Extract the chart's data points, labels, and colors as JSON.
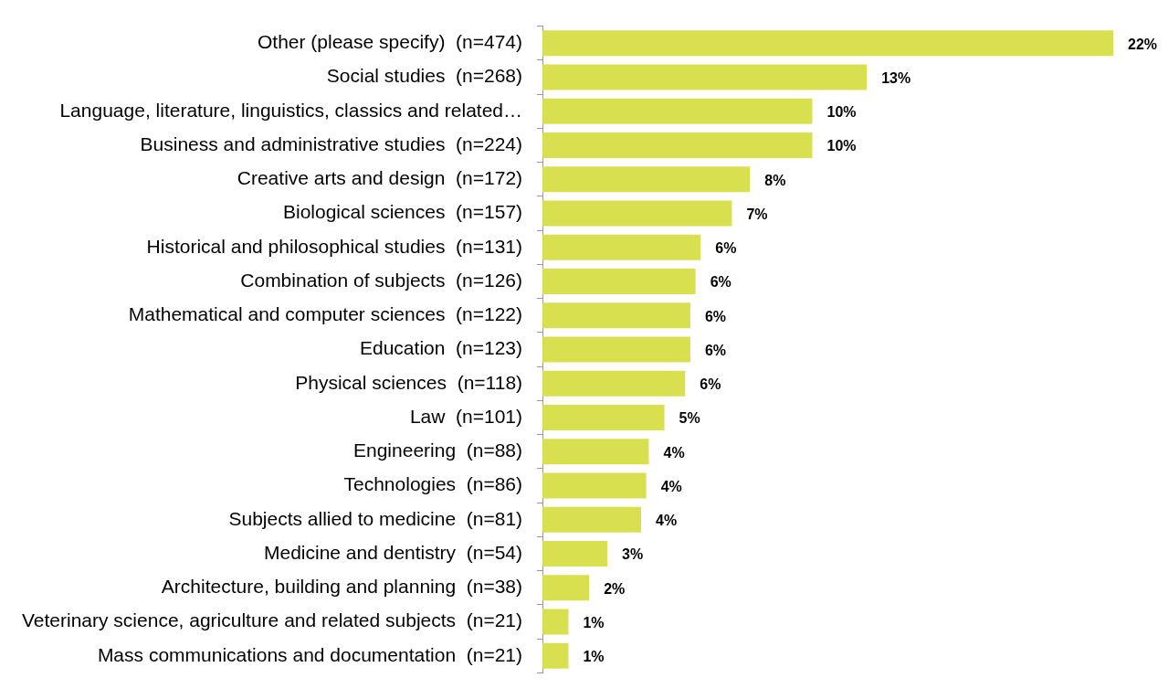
{
  "chart_data": {
    "type": "bar",
    "orientation": "horizontal",
    "categories": [
      "Other (please specify)  (n=474)",
      "Social studies  (n=268)",
      "Language, literature, linguistics, classics and related…",
      "Business and administrative studies  (n=224)",
      "Creative arts and design  (n=172)",
      "Biological sciences  (n=157)",
      "Historical and philosophical studies  (n=131)",
      "Combination of subjects  (n=126)",
      "Mathematical and computer sciences  (n=122)",
      "Education  (n=123)",
      "Physical sciences  (n=118)",
      "Law  (n=101)",
      "Engineering  (n=88)",
      "Technologies  (n=86)",
      "Subjects allied to medicine  (n=81)",
      "Medicine and dentistry  (n=54)",
      "Architecture, building and planning  (n=38)",
      "Veterinary science, agriculture and related subjects  (n=21)",
      "Mass communications and documentation  (n=21)"
    ],
    "values": [
      22,
      12.5,
      10.4,
      10.4,
      8,
      7.3,
      6.1,
      5.9,
      5.7,
      5.7,
      5.5,
      4.7,
      4.1,
      4,
      3.8,
      2.5,
      1.8,
      1,
      1
    ],
    "value_labels": [
      "22%",
      "13%",
      "10%",
      "10%",
      "8%",
      "7%",
      "6%",
      "6%",
      "6%",
      "6%",
      "6%",
      "5%",
      "4%",
      "4%",
      "4%",
      "3%",
      "2%",
      "1%",
      "1%"
    ],
    "color": "#d9e04f",
    "tick_labels": "y"
  }
}
